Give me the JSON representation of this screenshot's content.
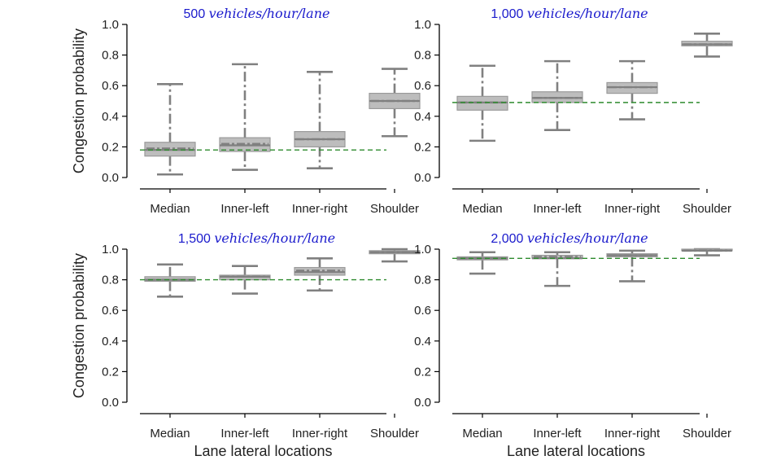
{
  "figure": {
    "xlabel": "Lane lateral locations",
    "ylabel": "Congestion probability"
  },
  "chart_data": [
    {
      "type": "box",
      "title_number": "500",
      "title_unit": "vehicles/hour/lane",
      "categories": [
        "Median",
        "Inner-left",
        "Inner-right",
        "Shoulder"
      ],
      "ylim": [
        0,
        1.0
      ],
      "yticks": [
        "0.0",
        "0.2",
        "0.4",
        "0.6",
        "0.8",
        "1.0"
      ],
      "reference_line": 0.18,
      "boxes": [
        {
          "whisker_low": 0.02,
          "q1": 0.14,
          "median": 0.18,
          "mean": 0.19,
          "q3": 0.23,
          "whisker_high": 0.61
        },
        {
          "whisker_low": 0.05,
          "q1": 0.17,
          "median": 0.21,
          "mean": 0.22,
          "q3": 0.26,
          "whisker_high": 0.74
        },
        {
          "whisker_low": 0.06,
          "q1": 0.2,
          "median": 0.25,
          "mean": 0.25,
          "q3": 0.3,
          "whisker_high": 0.69
        },
        {
          "whisker_low": 0.27,
          "q1": 0.45,
          "median": 0.5,
          "mean": 0.5,
          "q3": 0.55,
          "whisker_high": 0.71
        }
      ],
      "xlabel": "",
      "ylabel": "Congestion probability"
    },
    {
      "type": "box",
      "title_number": "1,000",
      "title_unit": "vehicles/hour/lane",
      "categories": [
        "Median",
        "Inner-left",
        "Inner-right",
        "Shoulder"
      ],
      "ylim": [
        0,
        1.0
      ],
      "yticks": [
        "0.0",
        "0.2",
        "0.4",
        "0.6",
        "0.8",
        "1.0"
      ],
      "reference_line": 0.49,
      "boxes": [
        {
          "whisker_low": 0.24,
          "q1": 0.44,
          "median": 0.49,
          "mean": 0.49,
          "q3": 0.53,
          "whisker_high": 0.73
        },
        {
          "whisker_low": 0.31,
          "q1": 0.49,
          "median": 0.52,
          "mean": 0.52,
          "q3": 0.56,
          "whisker_high": 0.76
        },
        {
          "whisker_low": 0.38,
          "q1": 0.55,
          "median": 0.59,
          "mean": 0.59,
          "q3": 0.62,
          "whisker_high": 0.76
        },
        {
          "whisker_low": 0.79,
          "q1": 0.86,
          "median": 0.87,
          "mean": 0.87,
          "q3": 0.89,
          "whisker_high": 0.94
        }
      ],
      "xlabel": "",
      "ylabel": ""
    },
    {
      "type": "box",
      "title_number": "1,500",
      "title_unit": "vehicles/hour/lane",
      "categories": [
        "Median",
        "Inner-left",
        "Inner-right",
        "Shoulder"
      ],
      "ylim": [
        0,
        1.0
      ],
      "yticks": [
        "0.0",
        "0.2",
        "0.4",
        "0.6",
        "0.8",
        "1.0"
      ],
      "reference_line": 0.8,
      "boxes": [
        {
          "whisker_low": 0.69,
          "q1": 0.79,
          "median": 0.8,
          "mean": 0.8,
          "q3": 0.82,
          "whisker_high": 0.9
        },
        {
          "whisker_low": 0.71,
          "q1": 0.8,
          "median": 0.82,
          "mean": 0.82,
          "q3": 0.83,
          "whisker_high": 0.89
        },
        {
          "whisker_low": 0.73,
          "q1": 0.83,
          "median": 0.85,
          "mean": 0.86,
          "q3": 0.88,
          "whisker_high": 0.94
        },
        {
          "whisker_low": 0.92,
          "q1": 0.97,
          "median": 0.98,
          "mean": 0.98,
          "q3": 0.99,
          "whisker_high": 1.0
        }
      ],
      "xlabel": "Lane lateral locations",
      "ylabel": "Congestion probability"
    },
    {
      "type": "box",
      "title_number": "2,000",
      "title_unit": "vehicles/hour/lane",
      "categories": [
        "Median",
        "Inner-left",
        "Inner-right",
        "Shoulder"
      ],
      "ylim": [
        0,
        1.0
      ],
      "yticks": [
        "0.0",
        "0.2",
        "0.4",
        "0.6",
        "0.8",
        "1.0"
      ],
      "reference_line": 0.94,
      "boxes": [
        {
          "whisker_low": 0.84,
          "q1": 0.93,
          "median": 0.94,
          "mean": 0.94,
          "q3": 0.95,
          "whisker_high": 0.98
        },
        {
          "whisker_low": 0.76,
          "q1": 0.94,
          "median": 0.94,
          "mean": 0.95,
          "q3": 0.96,
          "whisker_high": 0.98
        },
        {
          "whisker_low": 0.79,
          "q1": 0.95,
          "median": 0.96,
          "mean": 0.96,
          "q3": 0.97,
          "whisker_high": 0.99
        },
        {
          "whisker_low": 0.96,
          "q1": 0.99,
          "median": 0.99,
          "mean": 0.99,
          "q3": 1.0,
          "whisker_high": 1.0
        }
      ],
      "xlabel": "Lane lateral locations",
      "ylabel": ""
    }
  ],
  "colors": {
    "box_fill": "#bdbdbd",
    "box_edge": "#9a9a9a",
    "stroke": "#808080",
    "reference_line": "#2e8b2e",
    "title": "#1a1acc",
    "axis": "#000000"
  }
}
